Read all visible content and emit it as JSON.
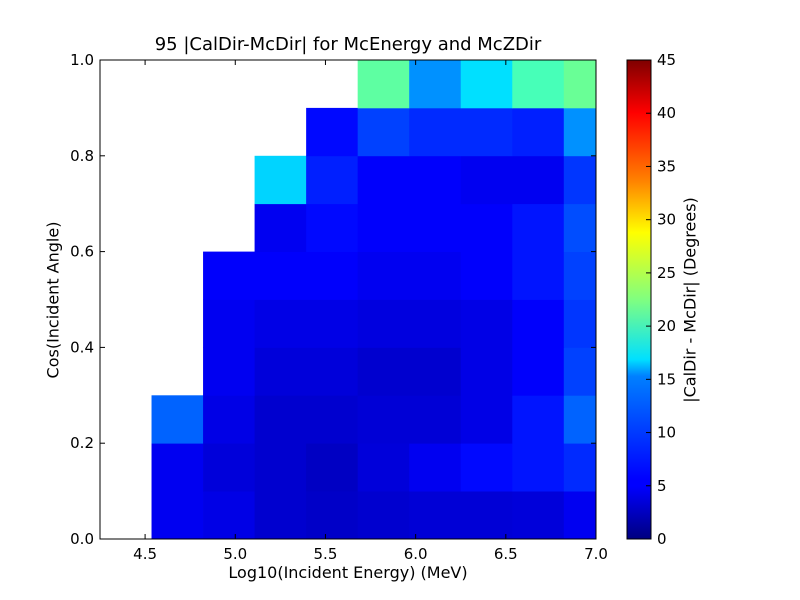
{
  "chart_data": {
    "type": "heatmap",
    "title": "95 |CalDir-McDir| for McEnergy and McZDir",
    "xlabel": "Log10(Incident Energy) (MeV)",
    "ylabel": "Cos(Incident Angle)",
    "colorbar_label": "|CalDir - McDir| (Degrees)",
    "colormap": "jet",
    "xlim": [
      4.25,
      7.0
    ],
    "ylim": [
      0.0,
      1.0
    ],
    "x_ticks": [
      "4.5",
      "5.0",
      "5.5",
      "6.0",
      "6.5",
      "7.0"
    ],
    "y_ticks": [
      "0.0",
      "0.2",
      "0.4",
      "0.6",
      "0.8",
      "1.0"
    ],
    "colorbar_range": [
      0,
      45
    ],
    "colorbar_ticks": [
      "0",
      "5",
      "10",
      "15",
      "20",
      "25",
      "30",
      "35",
      "40",
      "45"
    ],
    "x_bin_edges": [
      4.25,
      4.5357,
      4.8214,
      5.1071,
      5.3929,
      5.6786,
      5.9643,
      6.25,
      6.5357,
      6.8214,
      7.0
    ],
    "y_bin_edges": [
      0.0,
      0.1,
      0.2,
      0.3,
      0.4,
      0.5,
      0.6,
      0.7,
      0.8,
      0.9,
      1.0
    ],
    "grid": false,
    "values": [
      [
        null,
        5.0,
        4.5,
        3.5,
        3.2,
        3.5,
        3.8,
        3.8,
        4.0,
        5.0
      ],
      [
        null,
        5.0,
        4.0,
        3.5,
        3.0,
        4.0,
        5.0,
        6.0,
        6.5,
        7.5
      ],
      [
        null,
        10.0,
        4.5,
        3.5,
        3.5,
        3.8,
        3.8,
        4.5,
        6.5,
        10.0
      ],
      [
        null,
        null,
        5.0,
        4.0,
        4.0,
        3.5,
        3.5,
        4.5,
        5.5,
        8.5
      ],
      [
        null,
        null,
        5.0,
        4.5,
        4.5,
        4.2,
        4.2,
        4.5,
        5.5,
        8.0
      ],
      [
        null,
        null,
        5.5,
        5.5,
        5.5,
        5.0,
        5.0,
        5.5,
        6.5,
        8.5
      ],
      [
        null,
        null,
        null,
        5.0,
        6.0,
        5.5,
        5.5,
        5.5,
        6.5,
        9.0
      ],
      [
        null,
        null,
        null,
        15.0,
        7.0,
        5.5,
        5.5,
        5.0,
        5.0,
        8.0
      ],
      [
        null,
        null,
        null,
        null,
        6.0,
        8.5,
        7.5,
        7.5,
        7.0,
        12.0
      ],
      [
        null,
        null,
        null,
        null,
        null,
        21.0,
        12.0,
        15.5,
        20.0,
        21.5
      ]
    ]
  }
}
